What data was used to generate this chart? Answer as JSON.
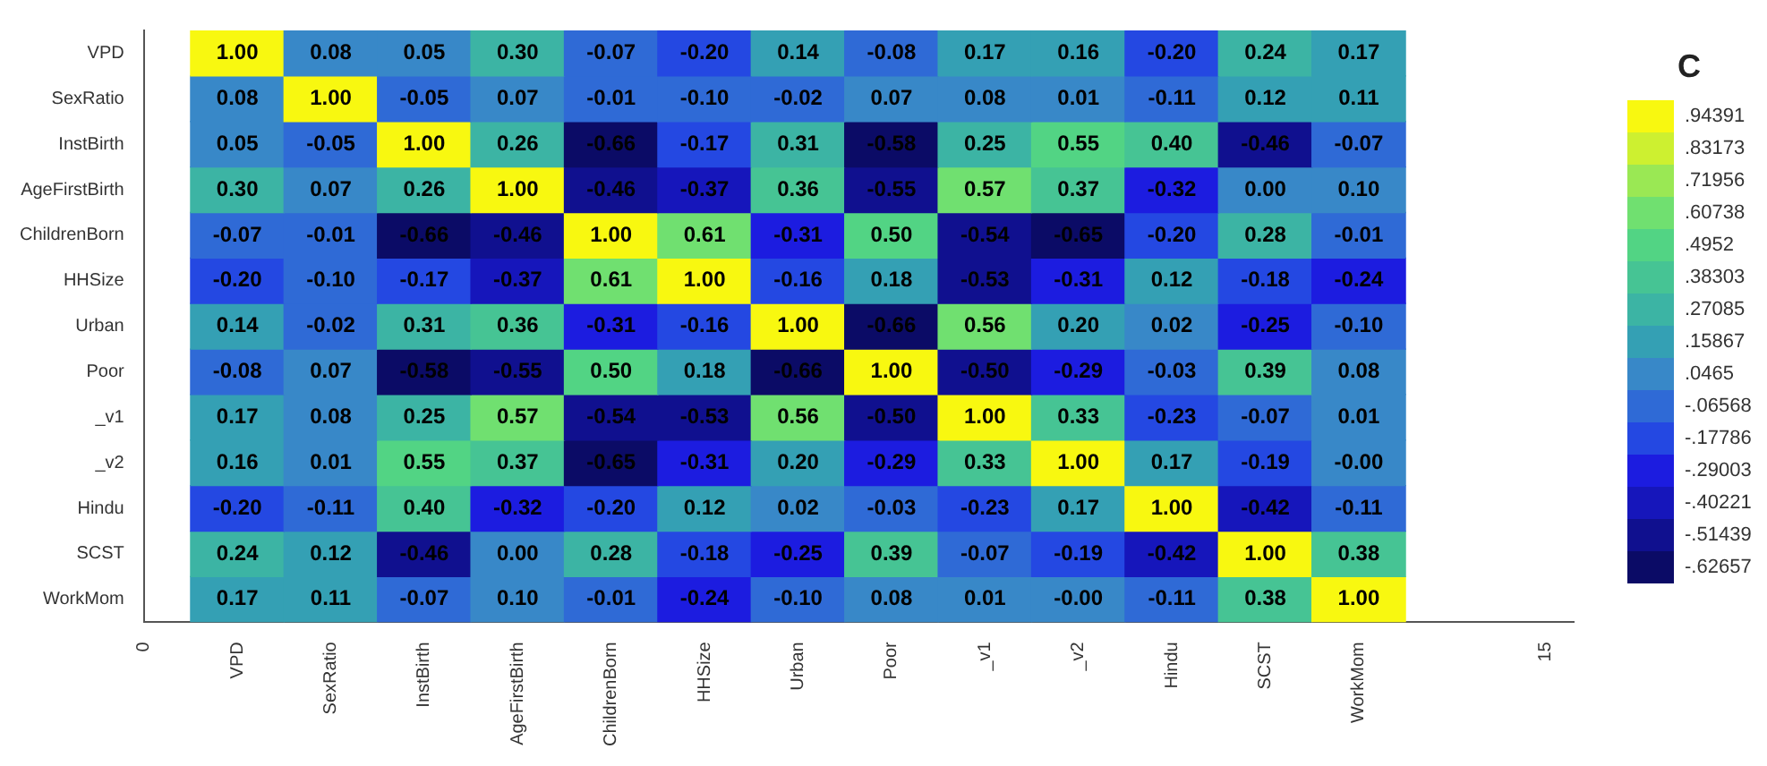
{
  "chart_data": {
    "type": "heatmap",
    "clabel": "C",
    "x": [
      1,
      2,
      3,
      4,
      5,
      6,
      7,
      8,
      9,
      10,
      11,
      12,
      13
    ],
    "y_categories": [
      "VPD",
      "SexRatio",
      "InstBirth",
      "AgeFirstBirth",
      "ChildrenBorn",
      "HHSize",
      "Urban",
      "Poor",
      "_v1",
      "_v2",
      "Hindu",
      "SCST",
      "WorkMom"
    ],
    "xlim": [
      0,
      15.3
    ],
    "xticks": [
      0,
      {
        "value": 1,
        "label": "VPD"
      },
      {
        "value": 2,
        "label": "SexRatio"
      },
      {
        "value": 3,
        "label": "InstBirth"
      },
      {
        "value": 4,
        "label": "AgeFirstBirth"
      },
      {
        "value": 5,
        "label": "ChildrenBorn"
      },
      {
        "value": 6,
        "label": "HHSize"
      },
      {
        "value": 7,
        "label": "Urban"
      },
      {
        "value": 8,
        "label": "Poor"
      },
      {
        "value": 9,
        "label": "_v1"
      },
      {
        "value": 10,
        "label": "_v2"
      },
      {
        "value": 11,
        "label": "Hindu"
      },
      {
        "value": 12,
        "label": "SCST"
      },
      {
        "value": 13,
        "label": "WorkMom"
      },
      15
    ],
    "cells": [
      [
        1.0,
        0.08,
        0.05,
        0.3,
        -0.07,
        -0.2,
        0.14,
        -0.08,
        0.17,
        0.16,
        -0.2,
        0.24,
        0.17
      ],
      [
        0.08,
        1.0,
        -0.05,
        0.07,
        -0.01,
        -0.1,
        -0.02,
        0.07,
        0.08,
        0.01,
        -0.11,
        0.12,
        0.11
      ],
      [
        0.05,
        -0.05,
        1.0,
        0.26,
        -0.66,
        -0.17,
        0.31,
        -0.58,
        0.25,
        0.55,
        0.4,
        -0.46,
        -0.07
      ],
      [
        0.3,
        0.07,
        0.26,
        1.0,
        -0.46,
        -0.37,
        0.36,
        -0.55,
        0.57,
        0.37,
        -0.32,
        0.0,
        0.1
      ],
      [
        -0.07,
        -0.01,
        -0.66,
        -0.46,
        1.0,
        0.61,
        -0.31,
        0.5,
        -0.54,
        -0.65,
        -0.2,
        0.28,
        -0.01
      ],
      [
        -0.2,
        -0.1,
        -0.17,
        -0.37,
        0.61,
        1.0,
        -0.16,
        0.18,
        -0.53,
        -0.31,
        0.12,
        -0.18,
        -0.24
      ],
      [
        0.14,
        -0.02,
        0.31,
        0.36,
        -0.31,
        -0.16,
        1.0,
        -0.66,
        0.56,
        0.2,
        0.02,
        -0.25,
        -0.1
      ],
      [
        -0.08,
        0.07,
        -0.58,
        -0.55,
        0.5,
        0.18,
        -0.66,
        1.0,
        -0.5,
        -0.29,
        -0.03,
        0.39,
        0.08
      ],
      [
        0.17,
        0.08,
        0.25,
        0.57,
        -0.54,
        -0.53,
        0.56,
        -0.5,
        1.0,
        0.33,
        -0.23,
        -0.07,
        0.01
      ],
      [
        0.16,
        0.01,
        0.55,
        0.37,
        -0.65,
        -0.31,
        0.2,
        -0.29,
        0.33,
        1.0,
        0.17,
        -0.19,
        0.0
      ],
      [
        -0.2,
        -0.11,
        0.4,
        -0.32,
        -0.2,
        0.12,
        0.02,
        -0.03,
        -0.23,
        0.17,
        1.0,
        -0.42,
        -0.11
      ],
      [
        0.24,
        0.12,
        -0.46,
        0.0,
        0.28,
        -0.18,
        -0.25,
        0.39,
        -0.07,
        -0.19,
        -0.42,
        1.0,
        0.38
      ],
      [
        0.17,
        0.11,
        -0.07,
        0.1,
        -0.01,
        -0.24,
        -0.1,
        0.08,
        0.01,
        0.0,
        -0.11,
        0.38,
        1.0
      ]
    ],
    "cell_labels": [
      [
        "1.00",
        "0.08",
        "0.05",
        "0.30",
        "-0.07",
        "-0.20",
        "0.14",
        "-0.08",
        "0.17",
        "0.16",
        "-0.20",
        "0.24",
        "0.17"
      ],
      [
        "0.08",
        "1.00",
        "-0.05",
        "0.07",
        "-0.01",
        "-0.10",
        "-0.02",
        "0.07",
        "0.08",
        "0.01",
        "-0.11",
        "0.12",
        "0.11"
      ],
      [
        "0.05",
        "-0.05",
        "1.00",
        "0.26",
        "-0.66",
        "-0.17",
        "0.31",
        "-0.58",
        "0.25",
        "0.55",
        "0.40",
        "-0.46",
        "-0.07"
      ],
      [
        "0.30",
        "0.07",
        "0.26",
        "1.00",
        "-0.46",
        "-0.37",
        "0.36",
        "-0.55",
        "0.57",
        "0.37",
        "-0.32",
        "0.00",
        "0.10"
      ],
      [
        "-0.07",
        "-0.01",
        "-0.66",
        "-0.46",
        "1.00",
        "0.61",
        "-0.31",
        "0.50",
        "-0.54",
        "-0.65",
        "-0.20",
        "0.28",
        "-0.01"
      ],
      [
        "-0.20",
        "-0.10",
        "-0.17",
        "-0.37",
        "0.61",
        "1.00",
        "-0.16",
        "0.18",
        "-0.53",
        "-0.31",
        "0.12",
        "-0.18",
        "-0.24"
      ],
      [
        "0.14",
        "-0.02",
        "0.31",
        "0.36",
        "-0.31",
        "-0.16",
        "1.00",
        "-0.66",
        "0.56",
        "0.20",
        "0.02",
        "-0.25",
        "-0.10"
      ],
      [
        "-0.08",
        "0.07",
        "-0.58",
        "-0.55",
        "0.50",
        "0.18",
        "-0.66",
        "1.00",
        "-0.50",
        "-0.29",
        "-0.03",
        "0.39",
        "0.08"
      ],
      [
        "0.17",
        "0.08",
        "0.25",
        "0.57",
        "-0.54",
        "-0.53",
        "0.56",
        "-0.50",
        "1.00",
        "0.33",
        "-0.23",
        "-0.07",
        "0.01"
      ],
      [
        "0.16",
        "0.01",
        "0.55",
        "0.37",
        "-0.65",
        "-0.31",
        "0.20",
        "-0.29",
        "0.33",
        "1.00",
        "0.17",
        "-0.19",
        "-0.00"
      ],
      [
        "-0.20",
        "-0.11",
        "0.40",
        "-0.32",
        "-0.20",
        "0.12",
        "0.02",
        "-0.03",
        "-0.23",
        "0.17",
        "1.00",
        "-0.42",
        "-0.11"
      ],
      [
        "0.24",
        "0.12",
        "-0.46",
        "0.00",
        "0.28",
        "-0.18",
        "-0.25",
        "0.39",
        "-0.07",
        "-0.19",
        "-0.42",
        "1.00",
        "0.38"
      ],
      [
        "0.17",
        "0.11",
        "-0.07",
        "0.10",
        "-0.01",
        "-0.24",
        "-0.10",
        "0.08",
        "0.01",
        "-0.00",
        "-0.11",
        "0.38",
        "1.00"
      ]
    ],
    "clim": [
      -0.6827,
      1.0
    ],
    "cticks": [
      {
        "value": 0.94391,
        "label": ".94391"
      },
      {
        "value": 0.83173,
        "label": ".83173"
      },
      {
        "value": 0.71956,
        "label": ".71956"
      },
      {
        "value": 0.60738,
        "label": ".60738"
      },
      {
        "value": 0.4952,
        "label": ".4952"
      },
      {
        "value": 0.38303,
        "label": ".38303"
      },
      {
        "value": 0.27085,
        "label": ".27085"
      },
      {
        "value": 0.15867,
        "label": ".15867"
      },
      {
        "value": 0.0465,
        "label": ".0465"
      },
      {
        "value": -0.06568,
        "label": "-.06568"
      },
      {
        "value": -0.17786,
        "label": "-.17786"
      },
      {
        "value": -0.29003,
        "label": "-.29003"
      },
      {
        "value": -0.40221,
        "label": "-.40221"
      },
      {
        "value": -0.51439,
        "label": "-.51439"
      },
      {
        "value": -0.62657,
        "label": "-.62657"
      }
    ]
  }
}
